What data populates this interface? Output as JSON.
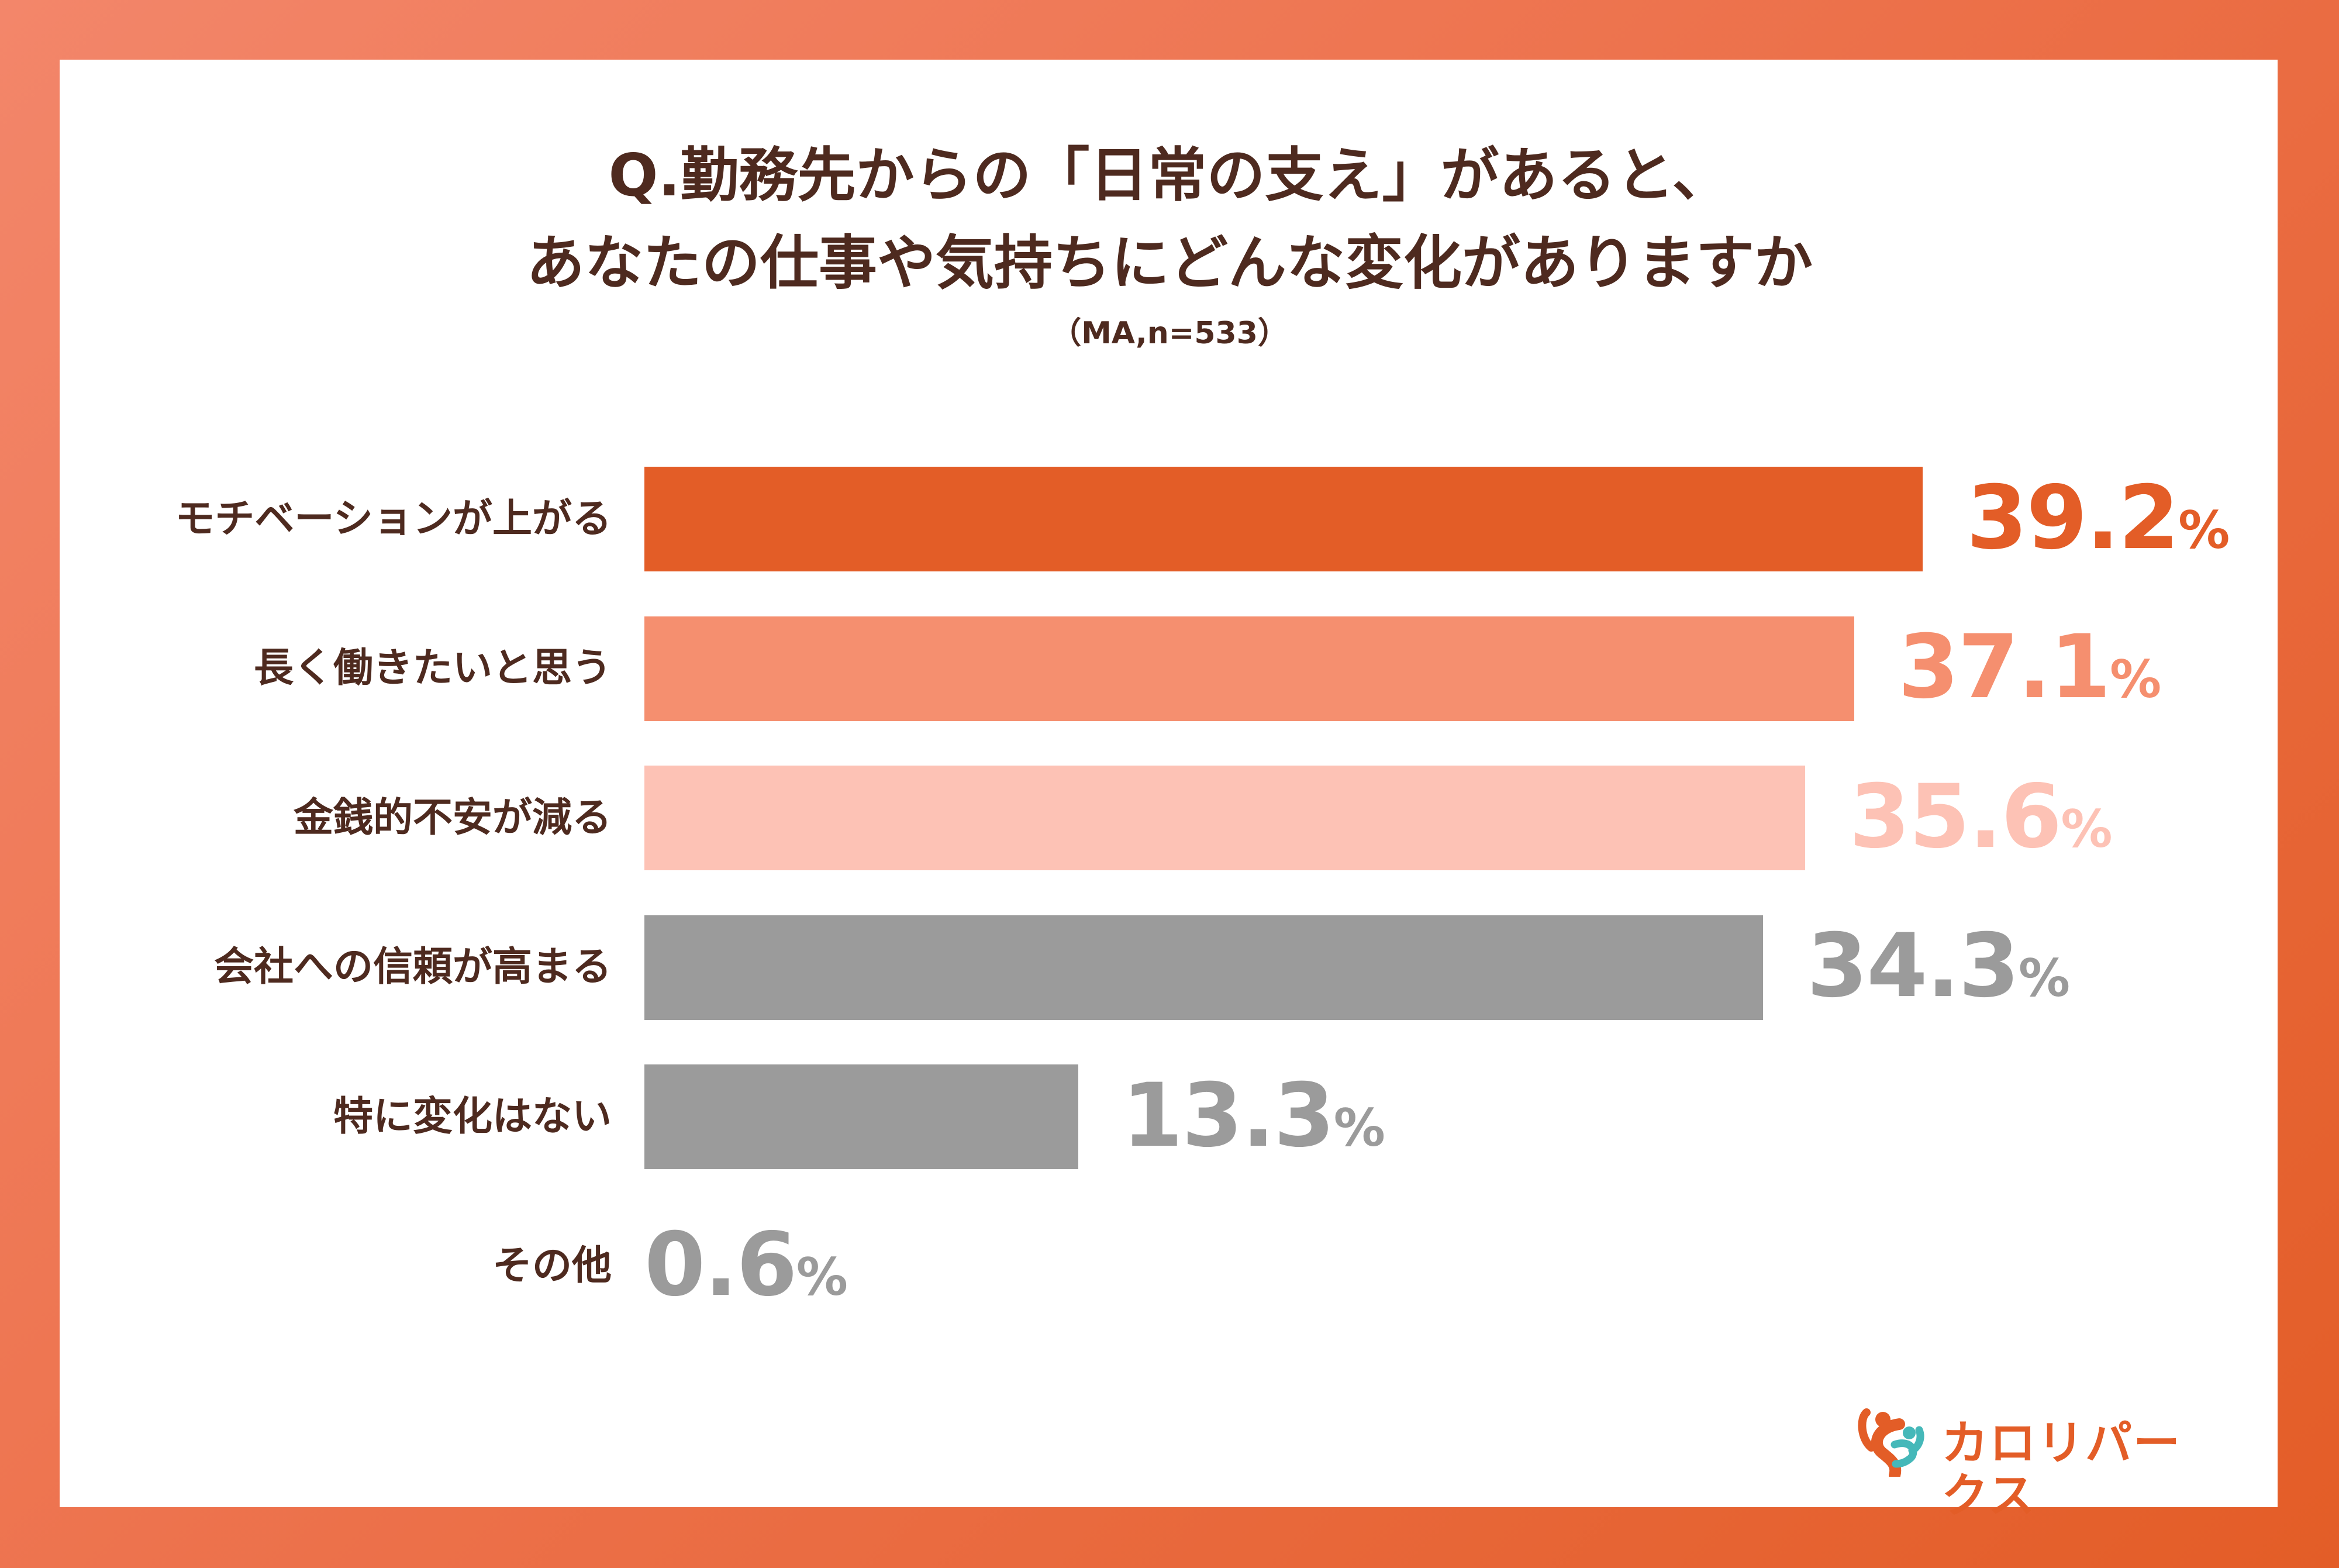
{
  "chart_data": {
    "type": "bar",
    "orientation": "horizontal",
    "title": "Q.勤務先からの「日常の支え」があると、",
    "title_line2": "あなたの仕事や気持ちにどんな変化がありますか",
    "subtitle": "（MA,n=533）",
    "categories": [
      "モチベーションが上がる",
      "長く働きたいと思う",
      "金銭的不安が減る",
      "会社への信頼が高まる",
      "特に変化はない",
      "その他"
    ],
    "values": [
      39.2,
      37.1,
      35.6,
      34.3,
      13.3,
      0.6
    ],
    "value_labels": [
      "39.2",
      "37.1",
      "35.6",
      "34.3",
      "13.3",
      "0.6"
    ],
    "unit": "%",
    "colors": [
      "#e35d27",
      "#f58f6f",
      "#fdc2b5",
      "#9b9b9b",
      "#9b9b9b",
      "#9b9b9b"
    ],
    "label_colors": [
      "#e35d27",
      "#f58f6f",
      "#fdc2b5",
      "#9b9b9b",
      "#9b9b9b",
      "#9b9b9b"
    ],
    "xlim": [
      0,
      39.2
    ],
    "grid": false,
    "legend": "none"
  },
  "brand": {
    "logo_text": "カロリパークス",
    "colors": {
      "orange": "#e35d27",
      "teal": "#45b8b9"
    }
  }
}
